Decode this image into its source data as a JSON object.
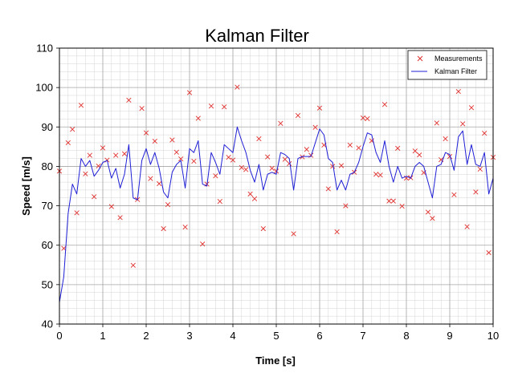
{
  "chart_data": {
    "type": "line",
    "title": "Kalman Filter",
    "xlabel": "Time [s]",
    "ylabel": "Speed [m/s]",
    "xlim": [
      0,
      10
    ],
    "ylim": [
      40,
      110
    ],
    "xticks": [
      0,
      1,
      2,
      3,
      4,
      5,
      6,
      7,
      8,
      9,
      10
    ],
    "yticks": [
      40,
      50,
      60,
      70,
      80,
      90,
      100,
      110
    ],
    "grid": true,
    "legend_position": "top-right",
    "series": [
      {
        "name": "Measurements",
        "kind": "scatter",
        "marker": "x",
        "color": "#e0312e",
        "x": [
          0.0,
          0.1,
          0.2,
          0.3,
          0.4,
          0.5,
          0.6,
          0.7,
          0.8,
          0.9,
          1.0,
          1.1,
          1.2,
          1.3,
          1.4,
          1.5,
          1.6,
          1.7,
          1.8,
          1.9,
          2.0,
          2.1,
          2.2,
          2.3,
          2.4,
          2.5,
          2.6,
          2.7,
          2.8,
          2.9,
          3.0,
          3.1,
          3.2,
          3.3,
          3.4,
          3.5,
          3.6,
          3.7,
          3.8,
          3.9,
          4.0,
          4.1,
          4.2,
          4.3,
          4.4,
          4.5,
          4.6,
          4.7,
          4.8,
          4.9,
          5.0,
          5.1,
          5.2,
          5.3,
          5.4,
          5.5,
          5.6,
          5.7,
          5.8,
          5.9,
          6.0,
          6.1,
          6.2,
          6.3,
          6.4,
          6.5,
          6.6,
          6.7,
          6.8,
          6.9,
          7.0,
          7.1,
          7.2,
          7.3,
          7.4,
          7.5,
          7.6,
          7.7,
          7.8,
          7.9,
          8.0,
          8.1,
          8.2,
          8.3,
          8.4,
          8.5,
          8.6,
          8.7,
          8.8,
          8.9,
          9.0,
          9.1,
          9.2,
          9.3,
          9.4,
          9.5,
          9.6,
          9.7,
          9.8,
          9.9,
          10.0
        ],
        "y": [
          78.8,
          59.2,
          86.0,
          89.4,
          68.2,
          95.5,
          78.1,
          82.8,
          72.3,
          80.1,
          84.7,
          81.6,
          69.8,
          82.8,
          67.0,
          83.2,
          96.8,
          54.9,
          71.6,
          94.7,
          88.5,
          76.9,
          86.4,
          75.6,
          64.2,
          70.3,
          86.7,
          83.6,
          81.9,
          64.6,
          98.7,
          81.3,
          92.2,
          60.3,
          75.5,
          95.3,
          77.6,
          71.1,
          95.1,
          82.3,
          81.6,
          100.1,
          79.7,
          79.2,
          73.0,
          71.8,
          87.0,
          64.2,
          82.4,
          79.5,
          78.8,
          90.9,
          81.8,
          80.7,
          62.9,
          92.9,
          82.4,
          84.3,
          82.8,
          89.9,
          94.8,
          85.4,
          74.3,
          80.0,
          63.4,
          80.2,
          70.0,
          85.4,
          78.5,
          84.7,
          92.3,
          92.1,
          86.5,
          78.0,
          77.8,
          95.7,
          71.2,
          71.2,
          84.6,
          69.9,
          77.0,
          77.1,
          83.9,
          82.9,
          78.4,
          68.4,
          66.8,
          91.0,
          81.7,
          87.0,
          82.5,
          72.8,
          99.0,
          90.8,
          64.7,
          94.9,
          73.5,
          79.3,
          88.4,
          58.1,
          82.3
        ]
      },
      {
        "name": "Kalman Filter",
        "kind": "line",
        "color": "#1f1fd6",
        "x": [
          0.0,
          0.1,
          0.2,
          0.3,
          0.4,
          0.5,
          0.6,
          0.7,
          0.8,
          0.9,
          1.0,
          1.1,
          1.2,
          1.3,
          1.4,
          1.5,
          1.6,
          1.7,
          1.8,
          1.9,
          2.0,
          2.1,
          2.2,
          2.3,
          2.4,
          2.5,
          2.6,
          2.7,
          2.8,
          2.9,
          3.0,
          3.1,
          3.2,
          3.3,
          3.4,
          3.5,
          3.6,
          3.7,
          3.8,
          3.9,
          4.0,
          4.1,
          4.2,
          4.3,
          4.4,
          4.5,
          4.6,
          4.7,
          4.8,
          4.9,
          5.0,
          5.1,
          5.2,
          5.3,
          5.4,
          5.5,
          5.6,
          5.7,
          5.8,
          5.9,
          6.0,
          6.1,
          6.2,
          6.3,
          6.4,
          6.5,
          6.6,
          6.7,
          6.8,
          6.9,
          7.0,
          7.1,
          7.2,
          7.3,
          7.4,
          7.5,
          7.6,
          7.7,
          7.8,
          7.9,
          8.0,
          8.1,
          8.2,
          8.3,
          8.4,
          8.5,
          8.6,
          8.7,
          8.8,
          8.9,
          9.0,
          9.1,
          9.2,
          9.3,
          9.4,
          9.5,
          9.6,
          9.7,
          9.8,
          9.9,
          10.0
        ],
        "y": [
          45.5,
          52.0,
          68.0,
          75.5,
          73.0,
          82.0,
          80.0,
          81.5,
          77.5,
          79.0,
          81.0,
          81.5,
          77.0,
          79.5,
          74.5,
          78.0,
          85.5,
          72.0,
          71.5,
          81.5,
          84.5,
          80.5,
          83.5,
          79.5,
          73.5,
          72.0,
          78.5,
          80.5,
          81.5,
          74.5,
          84.5,
          83.5,
          86.5,
          75.5,
          75.0,
          83.5,
          81.0,
          78.0,
          85.5,
          84.5,
          83.5,
          90.0,
          86.5,
          83.5,
          79.0,
          76.0,
          80.5,
          74.0,
          78.0,
          78.5,
          78.0,
          83.5,
          83.0,
          82.0,
          74.0,
          82.0,
          82.5,
          82.5,
          82.5,
          86.0,
          89.5,
          88.0,
          82.0,
          81.0,
          74.0,
          76.5,
          74.0,
          78.0,
          78.5,
          81.0,
          85.0,
          88.5,
          88.0,
          83.5,
          81.0,
          86.5,
          80.0,
          76.0,
          80.0,
          77.0,
          77.5,
          77.0,
          80.0,
          81.0,
          80.0,
          76.0,
          72.0,
          80.0,
          80.5,
          83.5,
          83.0,
          79.0,
          87.5,
          89.0,
          80.5,
          85.5,
          80.5,
          80.0,
          83.5,
          73.0,
          77.0
        ]
      }
    ]
  }
}
